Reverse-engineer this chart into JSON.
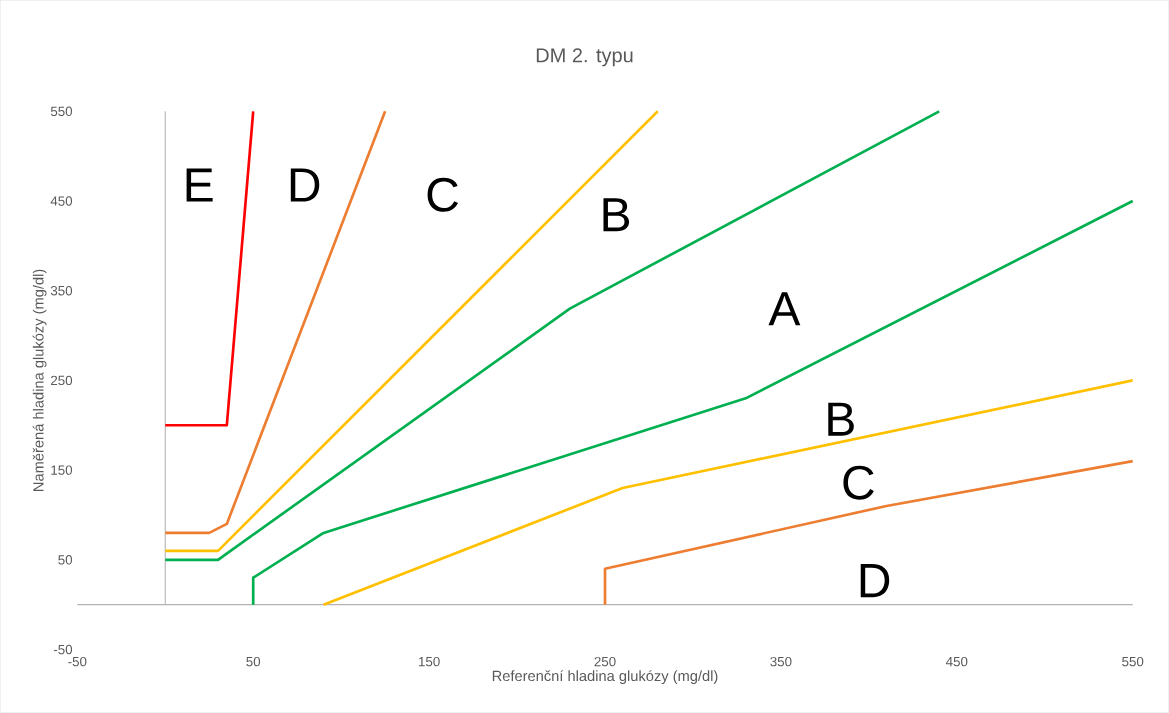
{
  "chart_data": {
    "type": "line",
    "title": "DM 2. typu",
    "xlabel": "Referenční hladina glukózy (mg/dl)",
    "ylabel": "Naměřená hladina glukózy (mg/dl)",
    "xlim": [
      -50,
      550
    ],
    "ylim": [
      -50,
      550
    ],
    "xticks": [
      -50,
      50,
      150,
      250,
      350,
      450,
      550
    ],
    "yticks": [
      -50,
      50,
      150,
      250,
      350,
      450,
      550
    ],
    "grid": false,
    "marker": "none",
    "line_style": "solid",
    "series": [
      {
        "color": "#ff0000",
        "x": [
          0,
          35,
          50
        ],
        "values": [
          200,
          200,
          550
        ]
      },
      {
        "color": "#ed7d31",
        "x": [
          0,
          25,
          35,
          125
        ],
        "values": [
          80,
          80,
          90,
          550
        ]
      },
      {
        "color": "#ffc000",
        "x": [
          0,
          30,
          280
        ],
        "values": [
          60,
          60,
          550
        ]
      },
      {
        "color": "#00b050",
        "x": [
          0,
          30,
          230,
          440
        ],
        "values": [
          50,
          50,
          330,
          550
        ]
      },
      {
        "color": "#00b050",
        "x": [
          50,
          50,
          90,
          330,
          550
        ],
        "values": [
          0,
          30,
          80,
          230,
          450
        ]
      },
      {
        "color": "#ffc000",
        "x": [
          90,
          260,
          550
        ],
        "values": [
          0,
          130,
          250
        ]
      },
      {
        "color": "#ed7d31",
        "x": [
          250,
          250,
          410,
          550
        ],
        "values": [
          0,
          40,
          110,
          160
        ]
      }
    ],
    "annotations": [
      "E",
      "D",
      "C",
      "B",
      "A",
      "B",
      "C",
      "D"
    ]
  }
}
